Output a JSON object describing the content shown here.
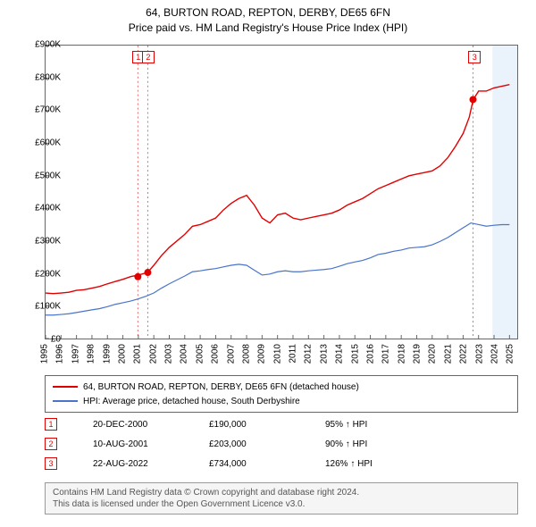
{
  "title_line1": "64, BURTON ROAD, REPTON, DERBY, DE65 6FN",
  "title_line2": "Price paid vs. HM Land Registry's House Price Index (HPI)",
  "chart": {
    "type": "line",
    "x_min": 1995,
    "x_max": 2025.5,
    "y_min": 0,
    "y_max": 900000,
    "y_tick_step": 100000,
    "y_tick_labels": [
      "£0",
      "£100K",
      "£200K",
      "£300K",
      "£400K",
      "£500K",
      "£600K",
      "£700K",
      "£800K",
      "£900K"
    ],
    "x_ticks": [
      1995,
      1996,
      1997,
      1998,
      1999,
      2000,
      2001,
      2002,
      2003,
      2004,
      2005,
      2006,
      2007,
      2008,
      2009,
      2010,
      2011,
      2012,
      2013,
      2014,
      2015,
      2016,
      2017,
      2018,
      2019,
      2020,
      2021,
      2022,
      2023,
      2024,
      2025
    ],
    "background_color": "#ffffff",
    "axis_color": "#666666",
    "highlight_band": {
      "x_from": 2023.9,
      "x_to": 2025.5,
      "fill": "#eaf2fb"
    },
    "series": [
      {
        "id": "property",
        "label": "64, BURTON ROAD, REPTON, DERBY, DE65 6FN (detached house)",
        "color": "#e10000",
        "line_width": 1.4,
        "points": [
          [
            1995.0,
            140000
          ],
          [
            1995.5,
            138000
          ],
          [
            1996.0,
            140000
          ],
          [
            1996.5,
            142000
          ],
          [
            1997.0,
            148000
          ],
          [
            1997.5,
            150000
          ],
          [
            1998.0,
            155000
          ],
          [
            1998.5,
            160000
          ],
          [
            1999.0,
            168000
          ],
          [
            1999.5,
            175000
          ],
          [
            2000.0,
            182000
          ],
          [
            2000.5,
            190000
          ],
          [
            2001.0,
            195000
          ],
          [
            2001.6,
            203000
          ],
          [
            2002.0,
            225000
          ],
          [
            2002.5,
            255000
          ],
          [
            2003.0,
            280000
          ],
          [
            2003.5,
            300000
          ],
          [
            2004.0,
            320000
          ],
          [
            2004.5,
            345000
          ],
          [
            2005.0,
            350000
          ],
          [
            2005.5,
            360000
          ],
          [
            2006.0,
            370000
          ],
          [
            2006.5,
            395000
          ],
          [
            2007.0,
            415000
          ],
          [
            2007.5,
            430000
          ],
          [
            2008.0,
            440000
          ],
          [
            2008.5,
            410000
          ],
          [
            2009.0,
            370000
          ],
          [
            2009.5,
            355000
          ],
          [
            2010.0,
            380000
          ],
          [
            2010.5,
            385000
          ],
          [
            2011.0,
            370000
          ],
          [
            2011.5,
            365000
          ],
          [
            2012.0,
            370000
          ],
          [
            2012.5,
            375000
          ],
          [
            2013.0,
            380000
          ],
          [
            2013.5,
            385000
          ],
          [
            2014.0,
            395000
          ],
          [
            2014.5,
            410000
          ],
          [
            2015.0,
            420000
          ],
          [
            2015.5,
            430000
          ],
          [
            2016.0,
            445000
          ],
          [
            2016.5,
            460000
          ],
          [
            2017.0,
            470000
          ],
          [
            2017.5,
            480000
          ],
          [
            2018.0,
            490000
          ],
          [
            2018.5,
            500000
          ],
          [
            2019.0,
            505000
          ],
          [
            2019.5,
            510000
          ],
          [
            2020.0,
            515000
          ],
          [
            2020.5,
            530000
          ],
          [
            2021.0,
            555000
          ],
          [
            2021.5,
            590000
          ],
          [
            2022.0,
            630000
          ],
          [
            2022.4,
            680000
          ],
          [
            2022.65,
            734000
          ],
          [
            2023.0,
            760000
          ],
          [
            2023.5,
            760000
          ],
          [
            2024.0,
            770000
          ],
          [
            2024.5,
            775000
          ],
          [
            2025.0,
            780000
          ]
        ]
      },
      {
        "id": "hpi",
        "label": "HPI: Average price, detached house, South Derbyshire",
        "color": "#4a74c9",
        "line_width": 1.2,
        "points": [
          [
            1995.0,
            72000
          ],
          [
            1995.5,
            72000
          ],
          [
            1996.0,
            74000
          ],
          [
            1996.5,
            76000
          ],
          [
            1997.0,
            80000
          ],
          [
            1997.5,
            84000
          ],
          [
            1998.0,
            88000
          ],
          [
            1998.5,
            92000
          ],
          [
            1999.0,
            98000
          ],
          [
            1999.5,
            105000
          ],
          [
            2000.0,
            110000
          ],
          [
            2000.5,
            115000
          ],
          [
            2001.0,
            122000
          ],
          [
            2001.5,
            130000
          ],
          [
            2002.0,
            140000
          ],
          [
            2002.5,
            155000
          ],
          [
            2003.0,
            168000
          ],
          [
            2003.5,
            180000
          ],
          [
            2004.0,
            192000
          ],
          [
            2004.5,
            205000
          ],
          [
            2005.0,
            208000
          ],
          [
            2005.5,
            212000
          ],
          [
            2006.0,
            215000
          ],
          [
            2006.5,
            220000
          ],
          [
            2007.0,
            225000
          ],
          [
            2007.5,
            228000
          ],
          [
            2008.0,
            225000
          ],
          [
            2008.5,
            210000
          ],
          [
            2009.0,
            195000
          ],
          [
            2009.5,
            198000
          ],
          [
            2010.0,
            205000
          ],
          [
            2010.5,
            208000
          ],
          [
            2011.0,
            205000
          ],
          [
            2011.5,
            205000
          ],
          [
            2012.0,
            208000
          ],
          [
            2012.5,
            210000
          ],
          [
            2013.0,
            212000
          ],
          [
            2013.5,
            215000
          ],
          [
            2014.0,
            222000
          ],
          [
            2014.5,
            230000
          ],
          [
            2015.0,
            235000
          ],
          [
            2015.5,
            240000
          ],
          [
            2016.0,
            248000
          ],
          [
            2016.5,
            258000
          ],
          [
            2017.0,
            262000
          ],
          [
            2017.5,
            268000
          ],
          [
            2018.0,
            272000
          ],
          [
            2018.5,
            278000
          ],
          [
            2019.0,
            280000
          ],
          [
            2019.5,
            282000
          ],
          [
            2020.0,
            288000
          ],
          [
            2020.5,
            298000
          ],
          [
            2021.0,
            310000
          ],
          [
            2021.5,
            325000
          ],
          [
            2022.0,
            340000
          ],
          [
            2022.5,
            355000
          ],
          [
            2023.0,
            350000
          ],
          [
            2023.5,
            345000
          ],
          [
            2024.0,
            348000
          ],
          [
            2024.5,
            350000
          ],
          [
            2025.0,
            350000
          ]
        ]
      }
    ],
    "sale_markers": [
      {
        "n": "1",
        "year": 2000.97,
        "price": 190000,
        "color": "#e10000"
      },
      {
        "n": "2",
        "year": 2001.61,
        "price": 203000,
        "color": "#e10000"
      },
      {
        "n": "3",
        "year": 2022.64,
        "price": 734000,
        "color": "#e10000"
      }
    ]
  },
  "legend": {
    "items": [
      {
        "color": "#e10000",
        "text": "64, BURTON ROAD, REPTON, DERBY, DE65 6FN (detached house)"
      },
      {
        "color": "#4a74c9",
        "text": "HPI: Average price, detached house, South Derbyshire"
      }
    ]
  },
  "sales": [
    {
      "n": "1",
      "color": "#e10000",
      "date": "20-DEC-2000",
      "price": "£190,000",
      "hpi": "95% ↑ HPI"
    },
    {
      "n": "2",
      "color": "#e10000",
      "date": "10-AUG-2001",
      "price": "£203,000",
      "hpi": "90% ↑ HPI"
    },
    {
      "n": "3",
      "color": "#e10000",
      "date": "22-AUG-2022",
      "price": "£734,000",
      "hpi": "126% ↑ HPI"
    }
  ],
  "footer_line1": "Contains HM Land Registry data © Crown copyright and database right 2024.",
  "footer_line2": "This data is licensed under the Open Government Licence v3.0."
}
